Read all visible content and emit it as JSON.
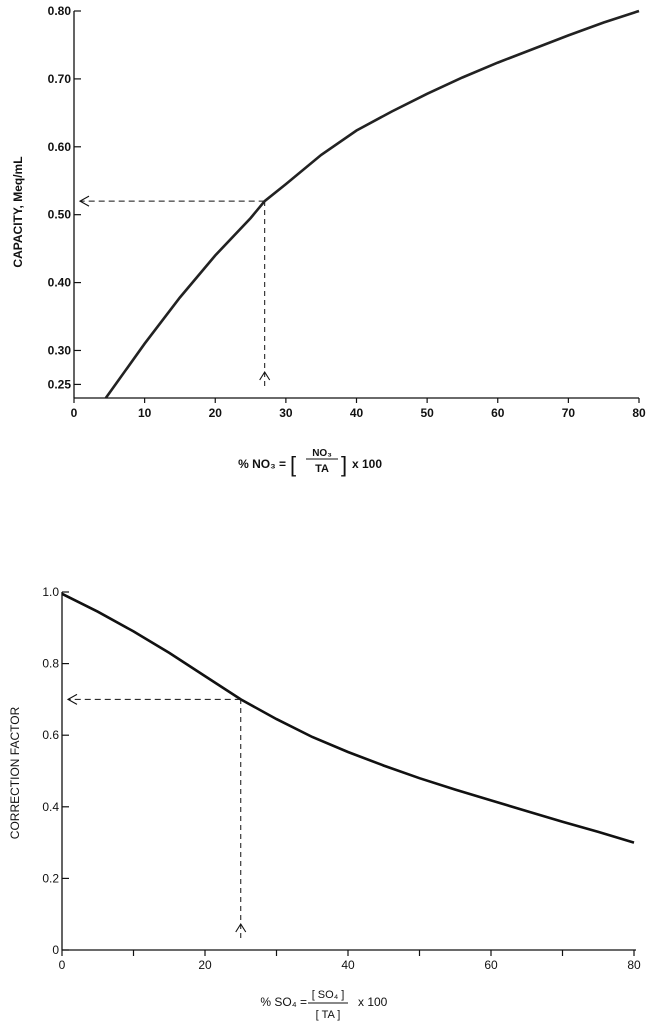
{
  "chart_data": [
    {
      "type": "line",
      "ylabel": "CAPACITY, Meq/mL",
      "xlabel": {
        "prefix": "% NO₃ = ",
        "numerator": "NO₃",
        "denominator": "TA",
        "suffix": "x 100"
      },
      "xlim": [
        0,
        80
      ],
      "ylim": [
        0.23,
        0.8
      ],
      "x_ticks": [
        0,
        10,
        20,
        30,
        40,
        50,
        60,
        70,
        80
      ],
      "x_tick_labels": [
        "0",
        "10",
        "20",
        "30",
        "40",
        "50",
        "60",
        "70",
        "80"
      ],
      "y_ticks": [
        0.25,
        0.3,
        0.4,
        0.5,
        0.6,
        0.7,
        0.8
      ],
      "y_tick_labels": [
        "0.25",
        "0.30",
        "0.40",
        "0.50",
        "0.60",
        "0.70",
        "0.80"
      ],
      "grid": false,
      "series": [
        {
          "x": [
            4.5,
            10,
            15,
            20,
            25,
            27,
            30,
            35,
            40,
            45,
            50,
            55,
            60,
            65,
            70,
            75,
            80
          ],
          "values": [
            0.23,
            0.31,
            0.378,
            0.44,
            0.495,
            0.52,
            0.545,
            0.588,
            0.624,
            0.652,
            0.678,
            0.702,
            0.724,
            0.744,
            0.764,
            0.783,
            0.8
          ]
        }
      ],
      "annotation": {
        "x": 27,
        "y": 0.52,
        "style": "dashed-arrows"
      }
    },
    {
      "type": "line",
      "ylabel": "CORRECTION FACTOR",
      "xlabel": {
        "prefix": "% SO₄ = ",
        "numerator": "[ SO₄ ]",
        "denominator": "[ TA ]",
        "suffix": "x 100"
      },
      "xlim": [
        0,
        80
      ],
      "ylim": [
        0,
        1.0
      ],
      "x_ticks": [
        0,
        10,
        20,
        30,
        40,
        50,
        60,
        70,
        80
      ],
      "x_tick_labels": [
        "0",
        "20",
        "40",
        "60",
        "80"
      ],
      "x_tick_label_values": [
        0,
        20,
        40,
        60,
        80
      ],
      "y_ticks": [
        0,
        0.2,
        0.4,
        0.6,
        0.8,
        1.0
      ],
      "y_tick_labels": [
        "0",
        "0.2",
        "0.4",
        "0.6",
        "0.8",
        "1.0"
      ],
      "grid": false,
      "series": [
        {
          "x": [
            0,
            5,
            10,
            15,
            20,
            25,
            30,
            35,
            40,
            45,
            50,
            55,
            60,
            65,
            70,
            75,
            80
          ],
          "values": [
            0.995,
            0.945,
            0.89,
            0.83,
            0.765,
            0.7,
            0.645,
            0.595,
            0.553,
            0.515,
            0.48,
            0.448,
            0.418,
            0.388,
            0.358,
            0.33,
            0.3
          ]
        }
      ],
      "annotation": {
        "x": 25,
        "y": 0.7,
        "style": "dashed-arrows"
      }
    }
  ]
}
